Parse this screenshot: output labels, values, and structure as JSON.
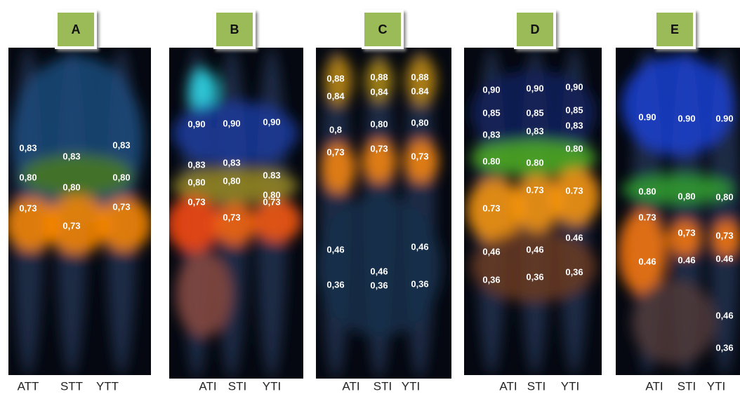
{
  "panels": [
    {
      "title": "A",
      "lanes": [
        "ATT",
        "STT",
        "YTT"
      ],
      "spots": [
        [
          "0,83",
          "0,80",
          "0,73"
        ],
        [
          "0,83",
          "0,80",
          "0,73"
        ],
        [
          "0,83",
          "0,80",
          "0,73"
        ]
      ]
    },
    {
      "title": "B",
      "lanes": [
        "ATI",
        "STI",
        "YTI"
      ],
      "spots": [
        [
          "0,90",
          "0,83",
          "0,80",
          "0,73"
        ],
        [
          "0,90",
          "0,83",
          "0,80",
          "0,73"
        ],
        [
          "0,90",
          "0.83",
          "0,80",
          "0,73"
        ]
      ]
    },
    {
      "title": "C",
      "lanes": [
        "ATI",
        "STI",
        "YTI"
      ],
      "spots": [
        [
          "0,88",
          "0,84",
          "0,8",
          "0,73",
          "0,46",
          "0,36"
        ],
        [
          "0,88",
          "0,84",
          "0,80",
          "0,73",
          "0,46",
          "0,36"
        ],
        [
          "0,88",
          "0.84",
          "0,80",
          "0,73",
          "0,46",
          "0,36"
        ]
      ]
    },
    {
      "title": "D",
      "lanes": [
        "ATI",
        "STI",
        "YTI"
      ],
      "spots": [
        [
          "0,90",
          "0,85",
          "0,83",
          "0.80",
          "0.73",
          "0,46",
          "0,36"
        ],
        [
          "0,90",
          "0,85",
          "0,83",
          "0.80",
          "0.73",
          "0,46",
          "0,36"
        ],
        [
          "0,90",
          "0,85",
          "0,83",
          "0.80",
          "0.73",
          "0.46",
          "0,36"
        ]
      ]
    },
    {
      "title": "E",
      "lanes": [
        "ATI",
        "STI",
        "YTI"
      ],
      "spots": [
        [
          "0.90",
          "0.80",
          "0.73",
          "0.46"
        ],
        [
          "0.90",
          "0,80",
          "0,73",
          "0.46"
        ],
        [
          "0.90",
          "0,80",
          "0,73",
          "0.46",
          "0,46",
          "0,36"
        ]
      ]
    }
  ]
}
